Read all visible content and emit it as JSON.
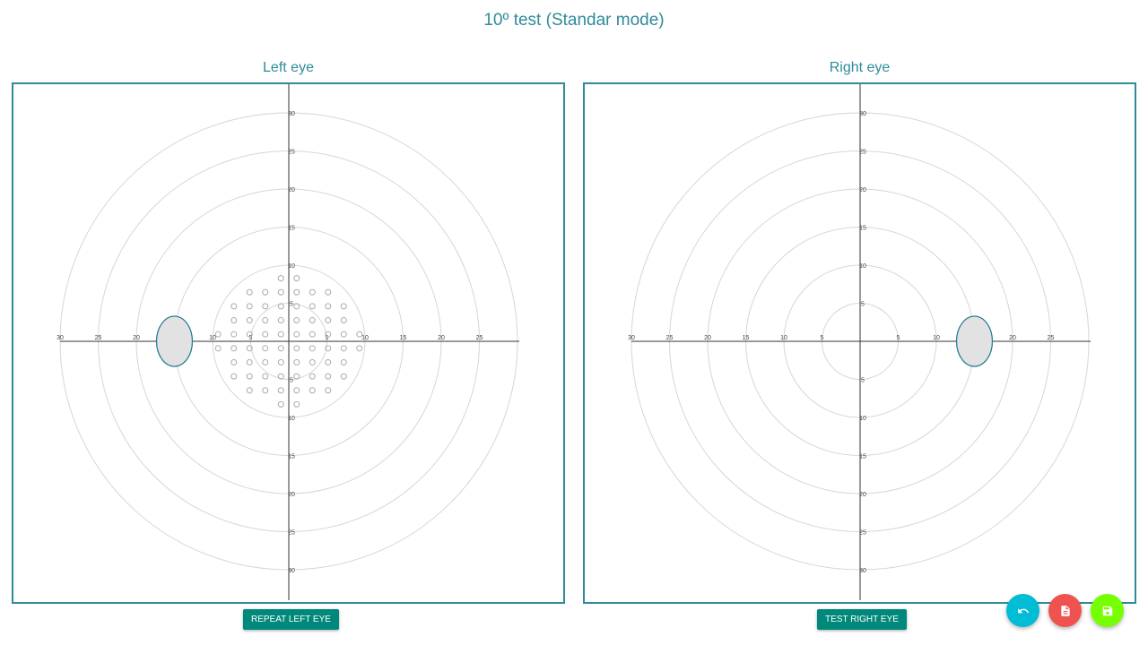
{
  "page": {
    "title": "10º test (Standar mode)"
  },
  "colors": {
    "accent": "#2e8b9a",
    "button": "#00897b",
    "fab_undo": "#00bcd4",
    "fab_report": "#ef5350",
    "fab_save": "#76ff03",
    "grid": "#d6d6d6",
    "axis": "#333333",
    "point": "#aaaaaa",
    "blindspot_fill": "#e2e2e2",
    "blindspot_stroke": "#2a7f96"
  },
  "left_eye": {
    "title": "Left eye",
    "button_label": "REPEAT LEFT EYE",
    "chart_data": {
      "type": "scatter",
      "axis_range": [
        -30,
        30
      ],
      "ring_radii": [
        5,
        10,
        15,
        20,
        25,
        30
      ],
      "x_tick_labels": [
        "30",
        "25",
        "20",
        "15",
        "10",
        "5",
        "5",
        "10",
        "15",
        "20",
        "25"
      ],
      "x_tick_values": [
        -30,
        -25,
        -20,
        -15,
        -10,
        -5,
        5,
        10,
        15,
        20,
        25
      ],
      "y_tick_labels": [
        "30",
        "25",
        "20",
        "15",
        "10",
        "5",
        "5",
        "10",
        "15",
        "20",
        "25",
        "30"
      ],
      "y_tick_values": [
        30,
        25,
        20,
        15,
        10,
        5,
        -5,
        -10,
        -15,
        -20,
        -25,
        -30
      ],
      "blind_spot": {
        "cx": -15,
        "cy": 0,
        "rx": 2.5,
        "ry": 3.5
      },
      "test_point_rows": [
        {
          "y": 9,
          "x": [
            -1,
            1
          ]
        },
        {
          "y": 7,
          "x": [
            -5,
            -3,
            -1,
            1,
            3,
            5
          ]
        },
        {
          "y": 5,
          "x": [
            -7,
            -5,
            -3,
            -1,
            1,
            3,
            5,
            7
          ]
        },
        {
          "y": 3,
          "x": [
            -7,
            -5,
            -3,
            -1,
            1,
            3,
            5,
            7
          ]
        },
        {
          "y": 1,
          "x": [
            -9,
            -7,
            -5,
            -3,
            -1,
            1,
            3,
            5,
            7,
            9
          ]
        },
        {
          "y": -1,
          "x": [
            -9,
            -7,
            -5,
            -3,
            -1,
            1,
            3,
            5,
            7,
            9
          ]
        },
        {
          "y": -3,
          "x": [
            -7,
            -5,
            -3,
            -1,
            1,
            3,
            5,
            7
          ]
        },
        {
          "y": -5,
          "x": [
            -7,
            -5,
            -3,
            -1,
            1,
            3,
            5,
            7
          ]
        },
        {
          "y": -7,
          "x": [
            -5,
            -3,
            -1,
            1,
            3,
            5
          ]
        },
        {
          "y": -9,
          "x": [
            -1,
            1
          ]
        }
      ]
    }
  },
  "right_eye": {
    "title": "Right eye",
    "button_label": "TEST RIGHT EYE",
    "chart_data": {
      "type": "scatter",
      "axis_range": [
        -30,
        30
      ],
      "ring_radii": [
        5,
        10,
        15,
        20,
        25,
        30
      ],
      "x_tick_labels": [
        "30",
        "25",
        "20",
        "15",
        "10",
        "5",
        "5",
        "10",
        "15",
        "20",
        "25"
      ],
      "x_tick_values": [
        -30,
        -25,
        -20,
        -15,
        -10,
        -5,
        5,
        10,
        15,
        20,
        25
      ],
      "y_tick_labels": [
        "30",
        "25",
        "20",
        "15",
        "10",
        "5",
        "5",
        "10",
        "15",
        "20",
        "25",
        "30"
      ],
      "y_tick_values": [
        30,
        25,
        20,
        15,
        10,
        5,
        -5,
        -10,
        -15,
        -20,
        -25,
        -30
      ],
      "blind_spot": {
        "cx": 15,
        "cy": 0,
        "rx": 2.5,
        "ry": 3.5
      },
      "test_point_rows": []
    }
  },
  "fabs": {
    "undo_icon": "undo-icon",
    "report_icon": "document-icon",
    "save_icon": "save-icon"
  }
}
